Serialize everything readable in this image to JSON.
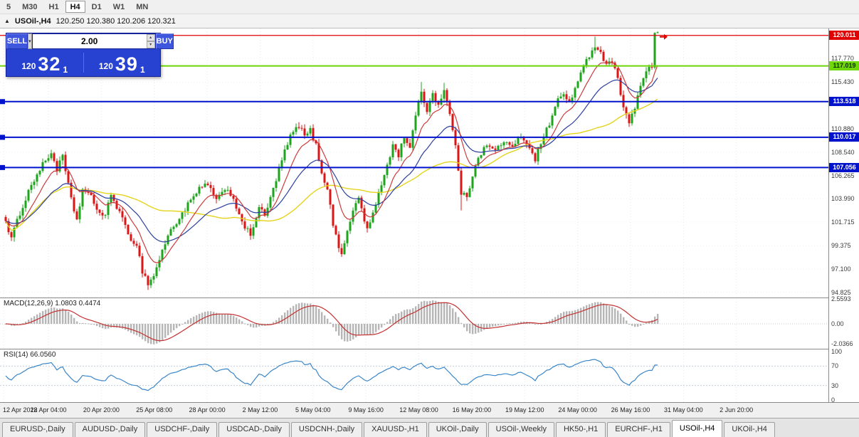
{
  "toolbar": {
    "timeframes": [
      "5",
      "M30",
      "H1",
      "H4",
      "D1",
      "W1",
      "MN"
    ],
    "active_timeframe": "H4"
  },
  "chart_title": {
    "collapse_icon": "▲",
    "symbol": "USOil-,H4",
    "ohlc": "120.250 120.380 120.206 120.321"
  },
  "trade_panel": {
    "sell_label": "SELL",
    "buy_label": "BUY",
    "volume": "2.00",
    "sell_price": {
      "big_figure": "120",
      "pips": "32",
      "pipette": "1"
    },
    "buy_price": {
      "big_figure": "120",
      "pips": "39",
      "pipette": "1"
    }
  },
  "indicator_labels": {
    "macd": "MACD(12,26,9) 1.0803 0.4474",
    "rsi": "RSI(14) 66.0560"
  },
  "chart_data": [
    {
      "type": "candlestick",
      "symbol": "USOil-,H4",
      "current_bar_ohlc": {
        "open": 120.25,
        "high": 120.38,
        "low": 120.206,
        "close": 120.321
      },
      "bars": 230,
      "price_range": [
        94.45,
        120.55
      ],
      "y_axis_labels": [
        "117.770",
        "115.430",
        "110.880",
        "108.540",
        "106.265",
        "103.990",
        "101.715",
        "99.375",
        "97.100",
        "94.825"
      ],
      "x_labels": [
        "12 Apr 2022",
        "18 Apr 04:00",
        "20 Apr 20:00",
        "25 Apr 08:00",
        "28 Apr 00:00",
        "2 May 12:00",
        "5 May 04:00",
        "9 May 16:00",
        "12 May 08:00",
        "16 May 20:00",
        "19 May 12:00",
        "24 May 00:00",
        "26 May 16:00",
        "31 May 04:00",
        "2 Jun 20:00"
      ],
      "horizontal_lines": [
        {
          "price": 120.011,
          "label": "120.011",
          "color_key": "red"
        },
        {
          "price": 117.019,
          "label": "117.019",
          "color_key": "green"
        },
        {
          "price": 113.518,
          "label": "113.518",
          "color_key": "blue"
        },
        {
          "price": 110.017,
          "label": "110.017",
          "color_key": "blue"
        },
        {
          "price": 107.056,
          "label": "107.056",
          "color_key": "blue"
        }
      ],
      "moving_averages": [
        {
          "color_key": "ma_red",
          "type": "ema",
          "period": 10
        },
        {
          "color_key": "ma_blue",
          "type": "ema",
          "period": 25
        },
        {
          "color_key": "ma_yellow",
          "type": "sma",
          "period": 55
        }
      ],
      "close_path_anchors": [
        [
          0,
          101.8
        ],
        [
          2,
          100.1
        ],
        [
          5,
          102.6
        ],
        [
          9,
          105.4
        ],
        [
          13,
          107.3
        ],
        [
          16,
          108.5
        ],
        [
          18,
          106.9
        ],
        [
          20,
          108.1
        ],
        [
          23,
          103.9
        ],
        [
          25,
          101.9
        ],
        [
          27,
          104.9
        ],
        [
          30,
          104.1
        ],
        [
          33,
          102.6
        ],
        [
          35,
          102.3
        ],
        [
          37,
          104.4
        ],
        [
          40,
          102.7
        ],
        [
          43,
          100.4
        ],
        [
          46,
          99.5
        ],
        [
          48,
          96.9
        ],
        [
          50,
          95.7
        ],
        [
          52,
          96.4
        ],
        [
          54,
          98.1
        ],
        [
          57,
          100.4
        ],
        [
          60,
          101.7
        ],
        [
          64,
          103.4
        ],
        [
          68,
          104.9
        ],
        [
          71,
          105.5
        ],
        [
          74,
          103.7
        ],
        [
          77,
          105.1
        ],
        [
          80,
          104.1
        ],
        [
          83,
          101.5
        ],
        [
          86,
          100.5
        ],
        [
          89,
          103.1
        ],
        [
          91,
          102.3
        ],
        [
          94,
          104.9
        ],
        [
          97,
          107.8
        ],
        [
          100,
          110.1
        ],
        [
          103,
          111.2
        ],
        [
          105,
          110.1
        ],
        [
          107,
          110.7
        ],
        [
          109,
          109.2
        ],
        [
          111,
          106.6
        ],
        [
          113,
          105.0
        ],
        [
          115,
          101.5
        ],
        [
          117,
          99.2
        ],
        [
          118,
          98.8
        ],
        [
          120,
          100.6
        ],
        [
          122,
          102.9
        ],
        [
          124,
          104.1
        ],
        [
          127,
          100.9
        ],
        [
          130,
          103.4
        ],
        [
          133,
          106.4
        ],
        [
          136,
          109.2
        ],
        [
          138,
          108.3
        ],
        [
          140,
          110.1
        ],
        [
          142,
          109.1
        ],
        [
          144,
          112.0
        ],
        [
          146,
          114.6
        ],
        [
          148,
          112.6
        ],
        [
          150,
          114.4
        ],
        [
          152,
          113.1
        ],
        [
          154,
          114.8
        ],
        [
          156,
          112.2
        ],
        [
          158,
          109.1
        ],
        [
          160,
          104.6
        ],
        [
          162,
          104.0
        ],
        [
          164,
          106.4
        ],
        [
          166,
          108.2
        ],
        [
          169,
          109.2
        ],
        [
          172,
          108.7
        ],
        [
          175,
          109.7
        ],
        [
          178,
          108.9
        ],
        [
          181,
          110.2
        ],
        [
          184,
          109.1
        ],
        [
          186,
          107.9
        ],
        [
          188,
          109.4
        ],
        [
          191,
          111.4
        ],
        [
          194,
          113.7
        ],
        [
          196,
          114.2
        ],
        [
          198,
          113.5
        ],
        [
          201,
          115.4
        ],
        [
          204,
          117.6
        ],
        [
          207,
          119.1
        ],
        [
          209,
          118.2
        ],
        [
          211,
          117.3
        ],
        [
          213,
          117.6
        ],
        [
          215,
          115.6
        ],
        [
          217,
          113.2
        ],
        [
          219,
          111.5
        ],
        [
          221,
          112.8
        ],
        [
          223,
          115.2
        ],
        [
          225,
          116.3
        ],
        [
          227,
          117.0
        ],
        [
          228,
          120.25
        ],
        [
          229,
          120.321
        ]
      ],
      "wick_overrides": [
        [
          16,
          "h",
          108.8
        ],
        [
          50,
          "l",
          95.05
        ],
        [
          103,
          "h",
          111.5
        ],
        [
          118,
          "l",
          98.3
        ],
        [
          146,
          "h",
          115.45
        ],
        [
          154,
          "h",
          115.35
        ],
        [
          160,
          "l",
          102.85
        ],
        [
          207,
          "h",
          119.9
        ],
        [
          229,
          "h",
          120.38
        ],
        [
          229,
          "l",
          120.206
        ]
      ]
    },
    {
      "type": "macd_histogram",
      "label": "MACD(12,26,9) 1.0803 0.4474",
      "params": [
        12,
        26,
        9
      ],
      "current_values": [
        1.0803,
        0.4474
      ],
      "y_axis_labels": [
        "2.5593",
        "0.00",
        "-2.0366"
      ]
    },
    {
      "type": "rsi_line",
      "label": "RSI(14) 66.0560",
      "period": 14,
      "current_value": 66.056,
      "levels": [
        70,
        30
      ],
      "y_axis_labels": [
        "100",
        "70",
        "30",
        "0"
      ]
    }
  ],
  "tabs": [
    "EURUSD-,Daily",
    "AUDUSD-,Daily",
    "USDCHF-,Daily",
    "USDCAD-,Daily",
    "USDCNH-,Daily",
    "XAUUSD-,H1",
    "UKOil-,Daily",
    "USOil-,Weekly",
    "HK50-,H1",
    "EURCHF-,H1",
    "USOil-,H4",
    "UKOil-,H4"
  ],
  "active_tab": "USOil-,H4",
  "colors": {
    "up": "#1ca41c",
    "down": "#dd1515",
    "ma_red": "#cc3b3b",
    "ma_blue": "#2b3f9e",
    "ma_yellow": "#e4d41c",
    "hline_red": "#e00000",
    "hline_green": "#6dd409",
    "hline_blue": "#0013cc",
    "macd_hist": "#b6b6b6",
    "macd_signal": "#c33030",
    "rsi": "#3a86c8",
    "panel_blue": "#2741d0"
  }
}
